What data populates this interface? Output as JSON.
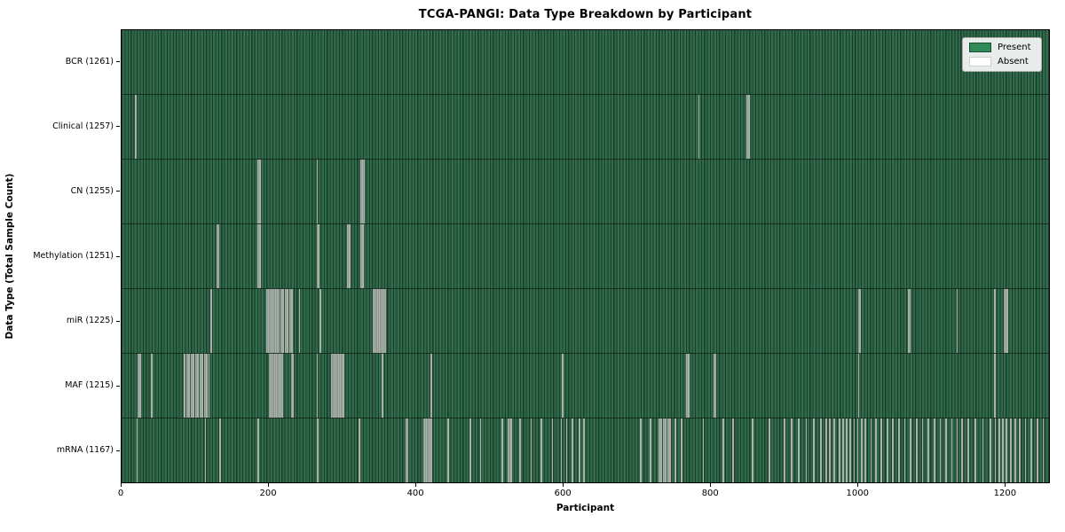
{
  "chart_data": {
    "type": "heatmap",
    "title": "TCGA-PANGI: Data Type Breakdown by Participant",
    "xlabel": "Participant",
    "ylabel": "Data Type (Total Sample Count)",
    "x_max": 1261,
    "x_ticks": [
      0,
      200,
      400,
      600,
      800,
      1000,
      1200
    ],
    "grid": false,
    "legend_position": "upper right",
    "colors": {
      "present": "#2e8b57",
      "present_dark_edge": "#1d4d33",
      "absent": "#ffffff",
      "absent_render": "#a9b2aa",
      "plot_base": "#2e6a4a",
      "spine": "#000000"
    },
    "legend": [
      {
        "label": "Present",
        "color": "#2e8b57"
      },
      {
        "label": "Absent",
        "color": "#ffffff"
      }
    ],
    "rows": [
      {
        "name": "bcr",
        "label": "BCR (1261)",
        "data_type": "BCR",
        "total_samples": 1261,
        "absent_count": 0,
        "absent": []
      },
      {
        "name": "clinical",
        "label": "Clinical (1257)",
        "data_type": "Clinical",
        "total_samples": 1257,
        "absent_count": 4,
        "absent": [
          18,
          784,
          850,
          852
        ]
      },
      {
        "name": "cn",
        "label": "CN (1255)",
        "data_type": "CN",
        "total_samples": 1255,
        "absent_count": 6,
        "absent": [
          185,
          187,
          265,
          325,
          327,
          329
        ]
      },
      {
        "name": "methylation",
        "label": "Methylation (1251)",
        "data_type": "Methylation",
        "total_samples": 1251,
        "absent_count": 10,
        "absent": [
          129,
          131,
          185,
          187,
          265,
          267,
          307,
          309,
          325,
          327
        ]
      },
      {
        "name": "mir",
        "label": "miR (1225)",
        "data_type": "miR",
        "total_samples": 1225,
        "absent_count": 36,
        "absent": [
          121,
          197,
          199,
          201,
          203,
          205,
          207,
          209,
          211,
          213,
          216,
          219,
          222,
          225,
          228,
          231,
          241,
          269,
          342,
          344,
          346,
          348,
          350,
          352,
          354,
          356,
          358,
          1001,
          1003,
          1069,
          1071,
          1135,
          1186,
          1199,
          1201,
          1203
        ]
      },
      {
        "name": "maf",
        "label": "MAF (1215)",
        "data_type": "MAF",
        "total_samples": 1215,
        "absent_count": 46,
        "absent": [
          22,
          24,
          40,
          85,
          88,
          91,
          94,
          97,
          100,
          103,
          106,
          109,
          112,
          115,
          118,
          200,
          202,
          204,
          206,
          208,
          210,
          212,
          214,
          216,
          218,
          230,
          232,
          265,
          285,
          287,
          289,
          291,
          293,
          295,
          297,
          299,
          301,
          354,
          420,
          599,
          768,
          770,
          805,
          807,
          1001,
          1186
        ]
      },
      {
        "name": "mrna",
        "label": "mRNA (1167)",
        "data_type": "mRNA",
        "total_samples": 1167,
        "absent_count": 94,
        "absent": [
          20,
          113,
          133,
          185,
          266,
          322,
          386,
          388,
          410,
          412,
          414,
          416,
          418,
          420,
          443,
          473,
          487,
          517,
          525,
          527,
          529,
          541,
          556,
          570,
          585,
          597,
          604,
          612,
          622,
          628,
          705,
          718,
          730,
          733,
          736,
          739,
          742,
          745,
          752,
          760,
          790,
          817,
          830,
          857,
          880,
          900,
          910,
          920,
          930,
          940,
          950,
          957,
          962,
          968,
          975,
          980,
          985,
          990,
          995,
          1000,
          1005,
          1010,
          1018,
          1025,
          1032,
          1040,
          1048,
          1056,
          1064,
          1072,
          1080,
          1088,
          1096,
          1104,
          1112,
          1120,
          1128,
          1135,
          1142,
          1150,
          1160,
          1170,
          1180,
          1187,
          1192,
          1197,
          1202,
          1208,
          1214,
          1220,
          1228,
          1236,
          1244,
          1252
        ]
      }
    ]
  }
}
